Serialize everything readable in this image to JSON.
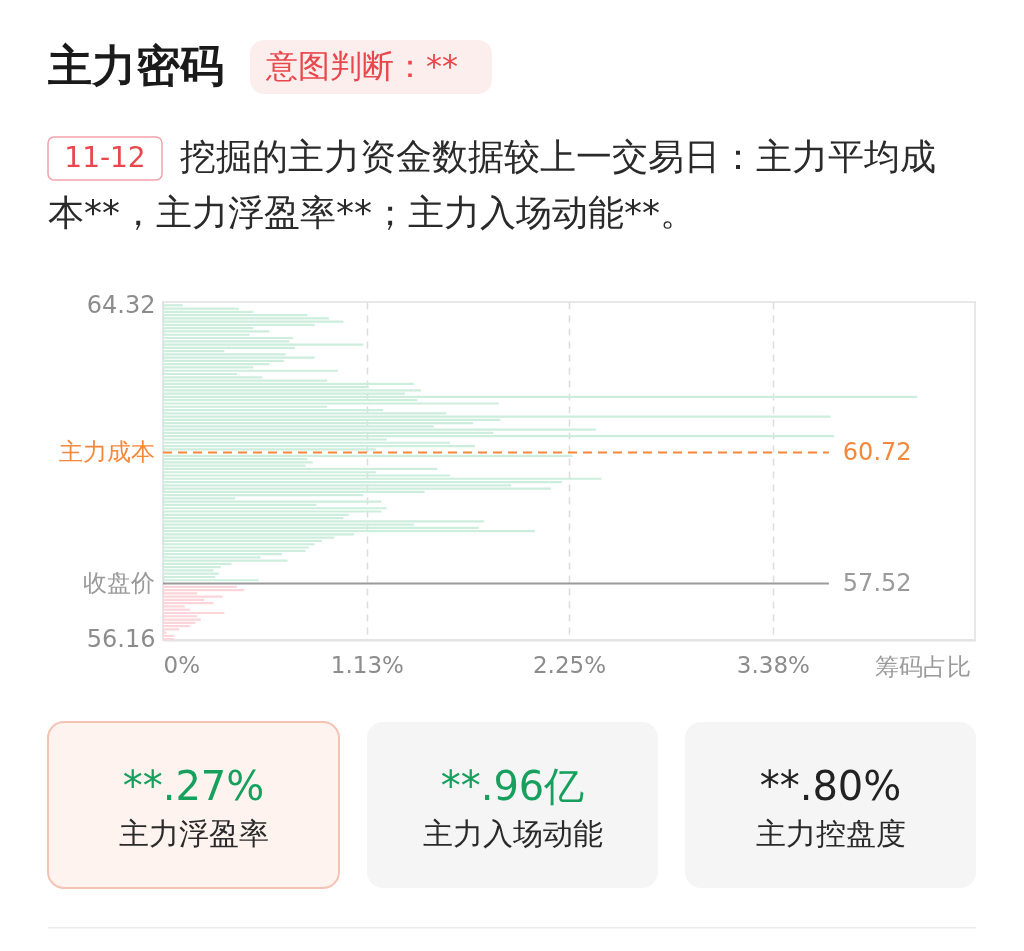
{
  "chart_data": {
    "type": "bar",
    "orientation": "horizontal",
    "title": "主力密码",
    "subtitle": "意图判断：**",
    "xlabel": "筹码占比",
    "annotations": [
      "11-12",
      "挖掘的主力资金数据较上一交易日：主力平均成",
      "本**，主力浮盈率**；主力入场动能**。",
      "**.27%",
      "主力浮盈率",
      "**.96亿",
      "主力入场动能",
      "**.80%",
      "主力控盘度",
      "60.72",
      "57.52"
    ],
    "series": [
      {
        "color": "#cdeedd",
        "x": [
          64.32,
          64.24,
          64.16,
          64.08,
          64.0,
          63.92,
          63.84,
          63.76,
          63.68,
          63.6,
          63.52,
          63.44,
          63.36,
          63.28,
          63.2,
          63.12,
          63.04,
          62.96,
          62.88,
          62.8,
          62.72,
          62.64,
          62.56,
          62.48,
          62.4,
          62.32,
          62.24,
          62.16,
          62.08,
          62.0,
          61.92,
          61.84,
          61.76,
          61.68,
          61.6,
          61.52,
          61.44,
          61.36,
          61.28,
          61.2,
          61.12,
          61.04,
          60.96,
          60.88,
          60.8,
          60.72,
          60.64,
          60.56,
          60.48,
          60.4,
          60.32,
          60.24,
          60.16,
          60.08,
          60.0,
          59.92,
          59.84,
          59.76,
          59.68,
          59.6,
          59.52,
          59.44,
          59.36,
          59.28,
          59.2,
          59.12,
          59.04,
          58.96,
          58.88,
          58.8,
          58.72,
          58.64,
          58.56,
          58.48,
          58.4,
          58.32,
          58.24,
          58.16,
          58.08,
          58.0,
          57.92,
          57.84,
          57.76,
          57.68,
          57.6
        ],
        "values": [
          0.11,
          0.42,
          0.5,
          0.8,
          0.92,
          1.0,
          0.84,
          0.5,
          0.59,
          0.48,
          0.72,
          0.7,
          1.11,
          0.73,
          0.34,
          0.68,
          0.84,
          0.67,
          0.59,
          0.5,
          0.97,
          0.41,
          0.55,
          0.91,
          1.39,
          1.14,
          1.43,
          1.34,
          4.18,
          1.41,
          1.86,
          0.91,
          1.22,
          1.57,
          3.7,
          1.87,
          1.72,
          1.5,
          2.4,
          1.83,
          3.72,
          1.24,
          1.59,
          1.73,
          1.18,
          null,
          2.27,
          0.8,
          0.83,
          0.79,
          1.52,
          1.18,
          1.59,
          2.43,
          2.21,
          1.93,
          2.15,
          1.45,
          1.11,
          0.4,
          1.21,
          0.85,
          1.24,
          1.21,
          1.03,
          1.0,
          1.78,
          1.39,
          1.75,
          2.06,
          1.06,
          0.95,
          0.88,
          0.84,
          0.81,
          0.79,
          0.66,
          0.54,
          0.69,
          0.38,
          0.32,
          0.28,
          0.31,
          0.29,
          0.53
        ]
      },
      {
        "color": "#fbd5da",
        "x": [
          57.44,
          57.36,
          57.28,
          57.2,
          57.12,
          57.04,
          56.96,
          56.88,
          56.8,
          56.72,
          56.64,
          56.56,
          56.48,
          56.4,
          56.32,
          56.24,
          56.16
        ],
        "values": [
          0.41,
          0.45,
          0.19,
          0.33,
          0.23,
          0.28,
          0.12,
          0.15,
          0.34,
          0.19,
          0.21,
          0.18,
          0.15,
          0.09,
          0.02,
          0.06,
          0.06
        ]
      }
    ],
    "xlim": [
      0,
      4.5
    ],
    "xticks": [
      {
        "value": 0,
        "label": "0%"
      },
      {
        "value": 1.13,
        "label": "1.13%"
      },
      {
        "value": 2.25,
        "label": "2.25%"
      },
      {
        "value": 3.38,
        "label": "3.38%"
      }
    ],
    "ylim": [
      56.14,
      64.4
    ],
    "yticks": [
      56.16,
      64.32
    ],
    "ref_lines": [
      {
        "axis": "y",
        "value": 60.72,
        "label": "主力成本",
        "color": "#f5883b",
        "line_style": "dashed"
      },
      {
        "axis": "y",
        "value": 57.52,
        "label": "收盘价",
        "color": "#9a9a9a",
        "line_style": "solid"
      }
    ],
    "grid": "x"
  }
}
